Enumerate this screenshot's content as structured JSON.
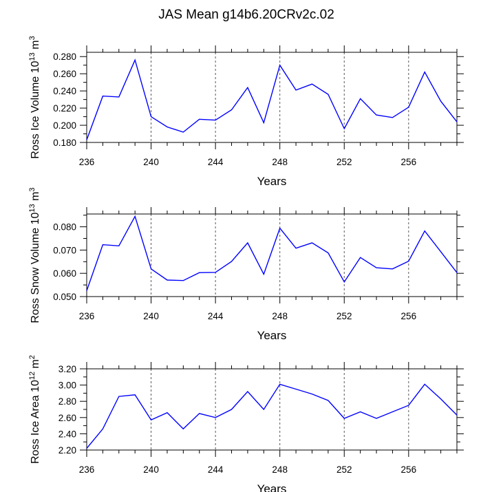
{
  "title": "JAS Mean g14b6.20CRv2c.02",
  "chart_data": [
    {
      "type": "line",
      "title": "",
      "xlabel": "Years",
      "ylabel": "Ross Ice Volume 10",
      "ylabel_exp": "13",
      "ylabel_unit": " m",
      "ylabel_unit_exp": "3",
      "xlim": [
        236,
        259
      ],
      "ylim": [
        0.18,
        0.285
      ],
      "x_ticks": [
        236,
        240,
        244,
        248,
        252,
        256
      ],
      "x_tick_labels": [
        "236",
        "240",
        "244",
        "248",
        "252",
        "256"
      ],
      "y_ticks": [
        0.18,
        0.2,
        0.22,
        0.24,
        0.26,
        0.28
      ],
      "y_tick_labels": [
        "0.180",
        "0.200",
        "0.220",
        "0.240",
        "0.260",
        "0.280"
      ],
      "grid": "vertical dashed at major x ticks",
      "series": [
        {
          "name": "Ross Ice Volume",
          "color": "#0000ff",
          "x": [
            236,
            237,
            238,
            239,
            240,
            241,
            242,
            243,
            244,
            245,
            246,
            247,
            248,
            249,
            250,
            251,
            252,
            253,
            254,
            255,
            256,
            257,
            258,
            259
          ],
          "values": [
            0.183,
            0.234,
            0.233,
            0.276,
            0.21,
            0.198,
            0.192,
            0.207,
            0.206,
            0.218,
            0.244,
            0.203,
            0.27,
            0.241,
            0.248,
            0.236,
            0.196,
            0.231,
            0.212,
            0.209,
            0.221,
            0.262,
            0.228,
            0.204
          ]
        }
      ]
    },
    {
      "type": "line",
      "title": "",
      "xlabel": "Years",
      "ylabel": "Ross Snow Volume 10",
      "ylabel_exp": "13",
      "ylabel_unit": " m",
      "ylabel_unit_exp": "3",
      "xlim": [
        236,
        259
      ],
      "ylim": [
        0.05,
        0.0855
      ],
      "x_ticks": [
        236,
        240,
        244,
        248,
        252,
        256
      ],
      "x_tick_labels": [
        "236",
        "240",
        "244",
        "248",
        "252",
        "256"
      ],
      "y_ticks": [
        0.05,
        0.06,
        0.07,
        0.08
      ],
      "y_tick_labels": [
        "0.050",
        "0.060",
        "0.070",
        "0.080"
      ],
      "grid": "vertical dashed at major x ticks",
      "series": [
        {
          "name": "Ross Snow Volume",
          "color": "#0000ff",
          "x": [
            236,
            237,
            238,
            239,
            240,
            241,
            242,
            243,
            244,
            245,
            246,
            247,
            248,
            249,
            250,
            251,
            252,
            253,
            254,
            255,
            256,
            257,
            258,
            259
          ],
          "values": [
            0.0525,
            0.0723,
            0.0718,
            0.0845,
            0.0619,
            0.0571,
            0.0569,
            0.0603,
            0.0604,
            0.0651,
            0.0731,
            0.0596,
            0.0794,
            0.0708,
            0.0731,
            0.0688,
            0.0563,
            0.0668,
            0.0624,
            0.0619,
            0.0652,
            0.0782,
            0.0693,
            0.0603
          ]
        }
      ]
    },
    {
      "type": "line",
      "title": "",
      "xlabel": "Years",
      "ylabel": "Ross Ice Area 10",
      "ylabel_exp": "12",
      "ylabel_unit": " m",
      "ylabel_unit_exp": "2",
      "xlim": [
        236,
        259
      ],
      "ylim": [
        2.2,
        3.2
      ],
      "x_ticks": [
        236,
        240,
        244,
        248,
        252,
        256
      ],
      "x_tick_labels": [
        "236",
        "240",
        "244",
        "248",
        "252",
        "256"
      ],
      "y_ticks": [
        2.2,
        2.4,
        2.6,
        2.8,
        3.0,
        3.2
      ],
      "y_tick_labels": [
        "2.20",
        "2.40",
        "2.60",
        "2.80",
        "3.00",
        "3.20"
      ],
      "grid": "vertical dashed at major x ticks",
      "series": [
        {
          "name": "Ross Ice Area",
          "color": "#0000ff",
          "x": [
            236,
            237,
            238,
            239,
            240,
            241,
            242,
            243,
            244,
            245,
            246,
            247,
            248,
            249,
            250,
            251,
            252,
            253,
            254,
            255,
            256,
            257,
            258,
            259
          ],
          "values": [
            2.22,
            2.46,
            2.86,
            2.88,
            2.57,
            2.66,
            2.46,
            2.65,
            2.6,
            2.7,
            2.92,
            2.7,
            3.01,
            2.95,
            2.89,
            2.81,
            2.59,
            2.67,
            2.59,
            2.67,
            2.75,
            3.01,
            2.83,
            2.63
          ]
        }
      ]
    }
  ]
}
